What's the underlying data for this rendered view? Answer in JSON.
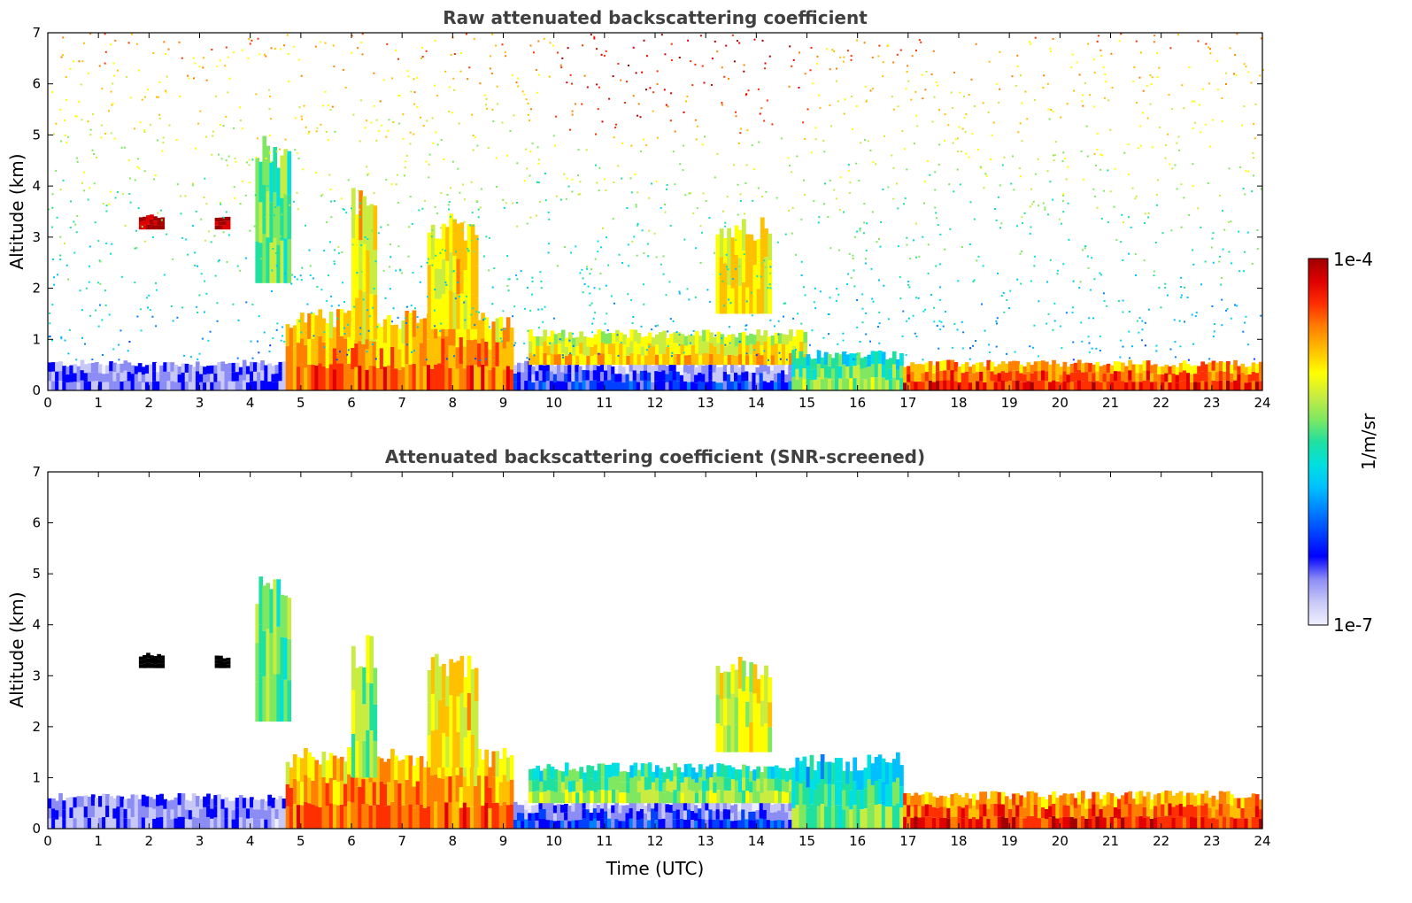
{
  "chart_data": [
    {
      "type": "heatmap",
      "title": "Raw attenuated backscattering coefficient",
      "xlabel": "",
      "ylabel": "Altitude (km)",
      "xlim": [
        0,
        24
      ],
      "ylim": [
        0,
        7
      ],
      "x_ticks": [
        "0",
        "1",
        "2",
        "3",
        "4",
        "5",
        "6",
        "7",
        "8",
        "9",
        "10",
        "11",
        "12",
        "13",
        "14",
        "15",
        "16",
        "17",
        "18",
        "19",
        "20",
        "21",
        "22",
        "23",
        "24"
      ],
      "y_ticks": [
        "0",
        "1",
        "2",
        "3",
        "4",
        "5",
        "6",
        "7"
      ],
      "screened": false,
      "features": [
        {
          "name": "surface-noise",
          "kind": "low-signal",
          "t0": 0,
          "t1": 4.7,
          "z0": 0,
          "z1": 0.6,
          "intensity": 0.12
        },
        {
          "name": "boundary-layer-morning",
          "kind": "aerosol",
          "t0": 4.7,
          "t1": 9.2,
          "z0": 0,
          "z1": 1.6,
          "intensity": 0.85
        },
        {
          "name": "boundary-layer-midday",
          "kind": "aerosol",
          "t0": 9.2,
          "t1": 14.7,
          "z0": 0,
          "z1": 0.6,
          "intensity": 0.22
        },
        {
          "name": "boundary-layer-top-midday",
          "kind": "aerosol",
          "t0": 9.5,
          "t1": 15.0,
          "z0": 0.5,
          "z1": 1.2,
          "intensity": 0.75
        },
        {
          "name": "boundary-layer-afternoon",
          "kind": "aerosol",
          "t0": 14.7,
          "t1": 16.9,
          "z0": 0,
          "z1": 0.8,
          "intensity": 0.6
        },
        {
          "name": "boundary-layer-evening",
          "kind": "aerosol",
          "t0": 16.9,
          "t1": 24,
          "z0": 0,
          "z1": 0.6,
          "intensity": 0.9
        },
        {
          "name": "cloud-elevated-1",
          "kind": "cloud",
          "t0": 1.8,
          "t1": 2.3,
          "z0": 3.15,
          "z1": 3.45,
          "intensity": 1.0
        },
        {
          "name": "cloud-elevated-2",
          "kind": "cloud",
          "t0": 3.3,
          "t1": 3.6,
          "z0": 3.15,
          "z1": 3.4,
          "intensity": 1.0
        },
        {
          "name": "virga-1",
          "kind": "fallstreak",
          "t0": 4.1,
          "t1": 4.8,
          "z0": 2.1,
          "z1": 5.0,
          "intensity": 0.55
        },
        {
          "name": "virga-2",
          "kind": "fallstreak",
          "t0": 6.0,
          "t1": 6.5,
          "z0": 1.0,
          "z1": 4.0,
          "intensity": 0.7
        },
        {
          "name": "virga-3",
          "kind": "fallstreak",
          "t0": 7.5,
          "t1": 8.5,
          "z0": 1.2,
          "z1": 3.5,
          "intensity": 0.7
        },
        {
          "name": "virga-4",
          "kind": "fallstreak",
          "t0": 13.2,
          "t1": 14.3,
          "z0": 1.5,
          "z1": 3.4,
          "intensity": 0.7
        },
        {
          "name": "free-troposphere-noise",
          "kind": "noise",
          "t0": 0,
          "t1": 24,
          "z0": 0.6,
          "z1": 7,
          "intensity": 0.5
        }
      ]
    },
    {
      "type": "heatmap",
      "title": "Attenuated backscattering coefficient (SNR-screened)",
      "xlabel": "Time (UTC)",
      "ylabel": "Altitude (km)",
      "xlim": [
        0,
        24
      ],
      "ylim": [
        0,
        7
      ],
      "x_ticks": [
        "0",
        "1",
        "2",
        "3",
        "4",
        "5",
        "6",
        "7",
        "8",
        "9",
        "10",
        "11",
        "12",
        "13",
        "14",
        "15",
        "16",
        "17",
        "18",
        "19",
        "20",
        "21",
        "22",
        "23",
        "24"
      ],
      "y_ticks": [
        "0",
        "1",
        "2",
        "3",
        "4",
        "5",
        "6",
        "7"
      ],
      "screened": true,
      "features": [
        {
          "name": "surface-low-signal",
          "kind": "low-signal",
          "t0": 0,
          "t1": 4.7,
          "z0": 0,
          "z1": 0.7,
          "intensity": 0.12
        },
        {
          "name": "boundary-layer-morning",
          "kind": "aerosol",
          "t0": 4.7,
          "t1": 9.2,
          "z0": 0,
          "z1": 1.6,
          "intensity": 0.85
        },
        {
          "name": "boundary-layer-midday",
          "kind": "aerosol",
          "t0": 9.2,
          "t1": 14.7,
          "z0": 0,
          "z1": 0.6,
          "intensity": 0.22
        },
        {
          "name": "boundary-layer-top-midday",
          "kind": "aerosol",
          "t0": 9.5,
          "t1": 15.0,
          "z0": 0.5,
          "z1": 1.3,
          "intensity": 0.6
        },
        {
          "name": "boundary-layer-afternoon",
          "kind": "aerosol",
          "t0": 14.7,
          "t1": 16.9,
          "z0": 0,
          "z1": 1.5,
          "intensity": 0.55
        },
        {
          "name": "boundary-layer-evening",
          "kind": "aerosol",
          "t0": 16.9,
          "t1": 24,
          "z0": 0,
          "z1": 0.75,
          "intensity": 0.9
        },
        {
          "name": "cloud-elevated-1",
          "kind": "cloud",
          "t0": 1.8,
          "t1": 2.3,
          "z0": 3.15,
          "z1": 3.45,
          "intensity": 1.0
        },
        {
          "name": "cloud-elevated-2",
          "kind": "cloud",
          "t0": 3.3,
          "t1": 3.6,
          "z0": 3.15,
          "z1": 3.4,
          "intensity": 1.0
        },
        {
          "name": "virga-1",
          "kind": "fallstreak",
          "t0": 4.1,
          "t1": 4.8,
          "z0": 2.1,
          "z1": 5.0,
          "intensity": 0.55
        },
        {
          "name": "virga-2",
          "kind": "fallstreak",
          "t0": 6.0,
          "t1": 6.5,
          "z0": 1.0,
          "z1": 3.8,
          "intensity": 0.6
        },
        {
          "name": "virga-3",
          "kind": "fallstreak",
          "t0": 7.5,
          "t1": 8.5,
          "z0": 1.2,
          "z1": 3.5,
          "intensity": 0.7
        },
        {
          "name": "virga-4",
          "kind": "fallstreak",
          "t0": 13.2,
          "t1": 14.3,
          "z0": 1.5,
          "z1": 3.4,
          "intensity": 0.65
        }
      ]
    }
  ],
  "colorbar": {
    "label": "1/m/sr",
    "max_label": "1e-4",
    "min_label": "1e-7",
    "vmin": 1e-07,
    "vmax": 0.0001,
    "scale": "log",
    "colors": [
      "#f0f0ff",
      "#c8c8f8",
      "#8c8cf5",
      "#0000ff",
      "#0040ff",
      "#0080ff",
      "#00bfff",
      "#00e0e0",
      "#20e0a0",
      "#80e860",
      "#c8ec40",
      "#ffff00",
      "#ffc000",
      "#ff8000",
      "#ff3000",
      "#e00000",
      "#a00000"
    ],
    "cloud_color": "#000000"
  }
}
